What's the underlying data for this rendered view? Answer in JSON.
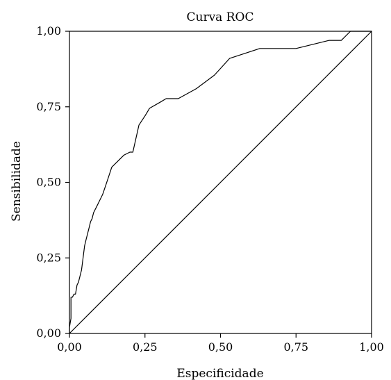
{
  "chart_data": {
    "type": "line",
    "title": "Curva ROC",
    "xlabel": "Especificidade",
    "ylabel": "Sensibilidade",
    "xlim": [
      0,
      1
    ],
    "ylim": [
      0,
      1
    ],
    "xticks": [
      "0,00",
      "0,25",
      "0,50",
      "0,75",
      "1,00"
    ],
    "yticks": [
      "0,00",
      "0,25",
      "0,50",
      "0,75",
      "1,00"
    ],
    "grid": false,
    "legend": "none",
    "series": [
      {
        "x": [
          0.0,
          0.0,
          0.005,
          0.005,
          0.008,
          0.01,
          0.015,
          0.02,
          0.025,
          0.03,
          0.035,
          0.04,
          0.045,
          0.05,
          0.055,
          0.06,
          0.065,
          0.07,
          0.075,
          0.08,
          0.09,
          0.1,
          0.11,
          0.12,
          0.13,
          0.14,
          0.16,
          0.18,
          0.2,
          0.21,
          0.23,
          0.25,
          0.265,
          0.3,
          0.32,
          0.36,
          0.42,
          0.48,
          0.53,
          0.63,
          0.75,
          0.86,
          0.9,
          0.93,
          1.0
        ],
        "y": [
          0.0,
          0.02,
          0.05,
          0.12,
          0.12,
          0.12,
          0.13,
          0.13,
          0.16,
          0.17,
          0.19,
          0.21,
          0.25,
          0.29,
          0.31,
          0.33,
          0.35,
          0.37,
          0.38,
          0.4,
          0.42,
          0.44,
          0.46,
          0.49,
          0.52,
          0.55,
          0.57,
          0.59,
          0.6,
          0.6,
          0.69,
          0.72,
          0.745,
          0.765,
          0.777,
          0.777,
          0.81,
          0.855,
          0.91,
          0.943,
          0.943,
          0.97,
          0.97,
          1.0,
          1.0
        ]
      },
      {
        "x": [
          0.0,
          1.0
        ],
        "y": [
          0.0,
          1.0
        ]
      }
    ]
  },
  "colors": {
    "line": "#000000",
    "background": "#ffffff"
  }
}
